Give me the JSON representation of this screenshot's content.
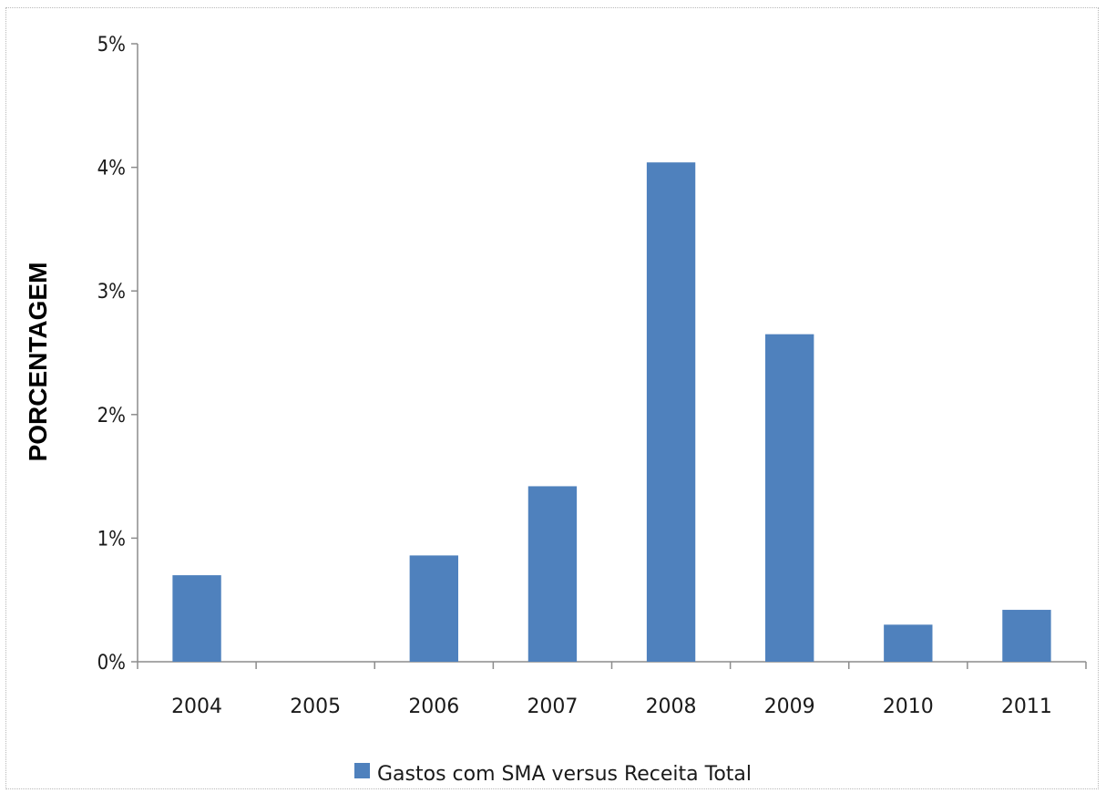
{
  "chart_data": {
    "type": "bar",
    "categories": [
      "2004",
      "2005",
      "2006",
      "2007",
      "2008",
      "2009",
      "2010",
      "2011"
    ],
    "series": [
      {
        "name": "Gastos com SMA versus Receita Total",
        "values": [
          0.7,
          0.0,
          0.86,
          1.42,
          4.04,
          2.65,
          0.3,
          0.42
        ],
        "color": "#4f81bd"
      }
    ],
    "ylabel": "PORCENTAGEM",
    "xlabel": "",
    "ylim": [
      0,
      5
    ],
    "yticks": [
      0,
      1,
      2,
      3,
      4,
      5
    ],
    "ytick_labels": [
      "0%",
      "1%",
      "2%",
      "3%",
      "4%",
      "5%"
    ],
    "grid": false,
    "legend_position": "bottom"
  }
}
